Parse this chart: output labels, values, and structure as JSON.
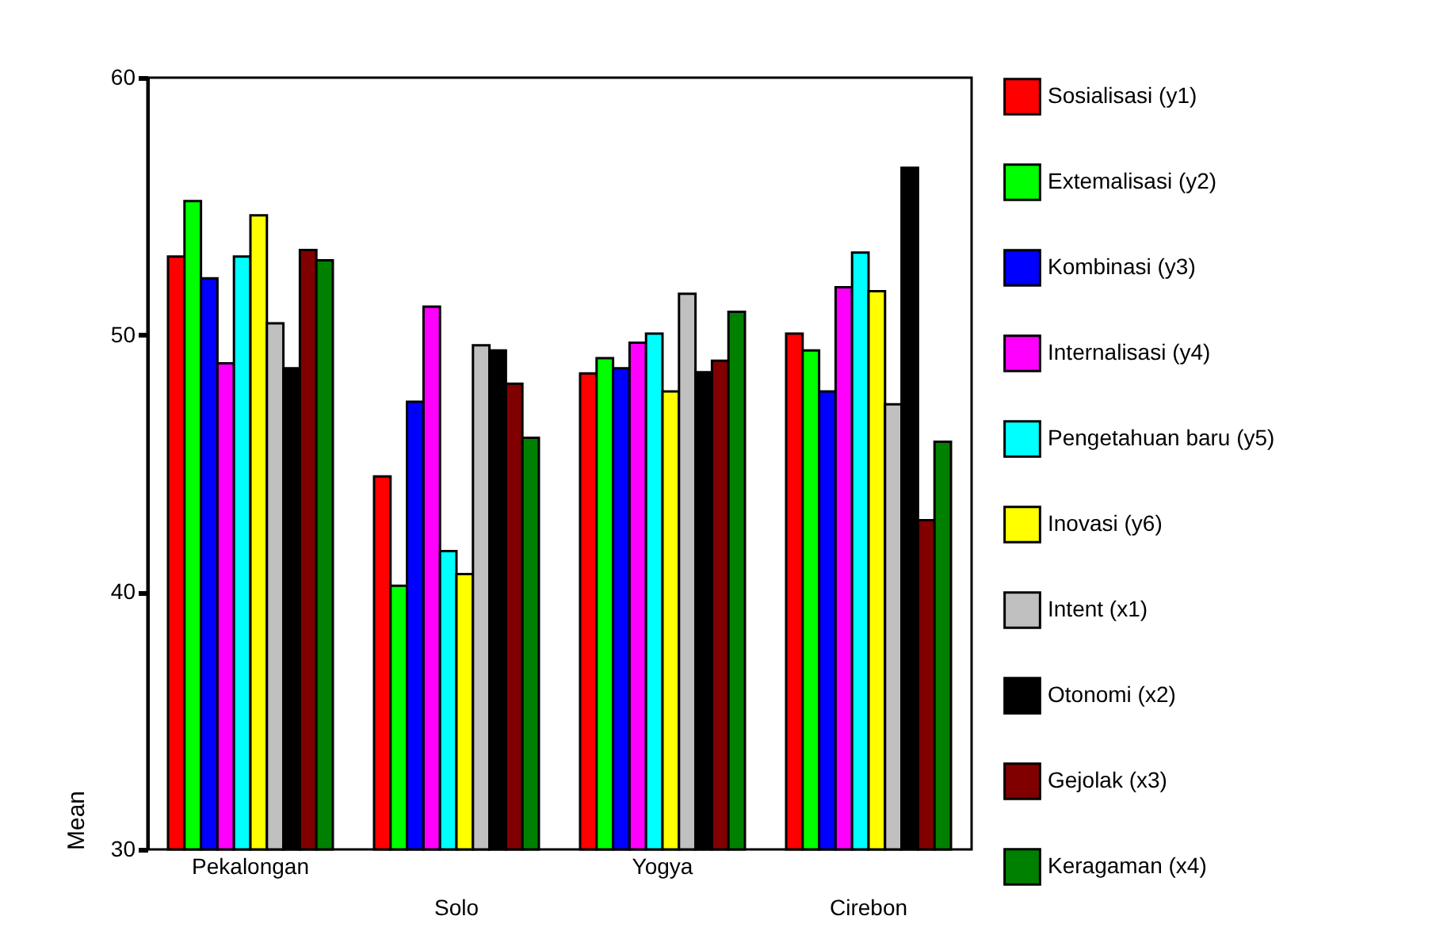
{
  "chart_data": {
    "type": "bar",
    "ylabel": "Mean",
    "categories": [
      "Pekalongan",
      "Solo",
      "Yogya",
      "Cirebon"
    ],
    "ylim": [
      30,
      60
    ],
    "yticks": [
      30,
      40,
      50,
      60
    ],
    "grid": false,
    "legend": "right",
    "series": [
      {
        "name": "Sosialisasi (y1)",
        "color": "#ff0000",
        "values": [
          53.05,
          44.5,
          48.5,
          50.05
        ]
      },
      {
        "name": "Extemalisasi (y2)",
        "color": "#00ff00",
        "values": [
          55.2,
          40.25,
          49.1,
          49.4
        ]
      },
      {
        "name": "Kombinasi (y3)",
        "color": "#0000ff",
        "values": [
          52.2,
          47.4,
          48.7,
          47.8
        ]
      },
      {
        "name": "Internalisasi (y4)",
        "color": "#ff00ff",
        "values": [
          48.9,
          51.1,
          49.7,
          51.85
        ]
      },
      {
        "name": "Pengetahuan baru (y5)",
        "color": "#00ffff",
        "values": [
          53.05,
          41.6,
          50.05,
          53.2
        ]
      },
      {
        "name": "Inovasi (y6)",
        "color": "#ffff00",
        "values": [
          54.65,
          40.7,
          47.8,
          51.7
        ]
      },
      {
        "name": "Intent (x1)",
        "color": "#c0c0c0",
        "values": [
          50.45,
          49.6,
          51.6,
          47.3
        ]
      },
      {
        "name": "Otonomi (x2)",
        "color": "#000000",
        "values": [
          48.7,
          49.4,
          48.55,
          56.5
        ]
      },
      {
        "name": "Gejolak (x3)",
        "color": "#800000",
        "values": [
          53.3,
          48.1,
          49.0,
          42.8
        ]
      },
      {
        "name": "Keragaman (x4)",
        "color": "#008000",
        "values": [
          52.9,
          46.0,
          50.9,
          45.85
        ]
      }
    ]
  }
}
